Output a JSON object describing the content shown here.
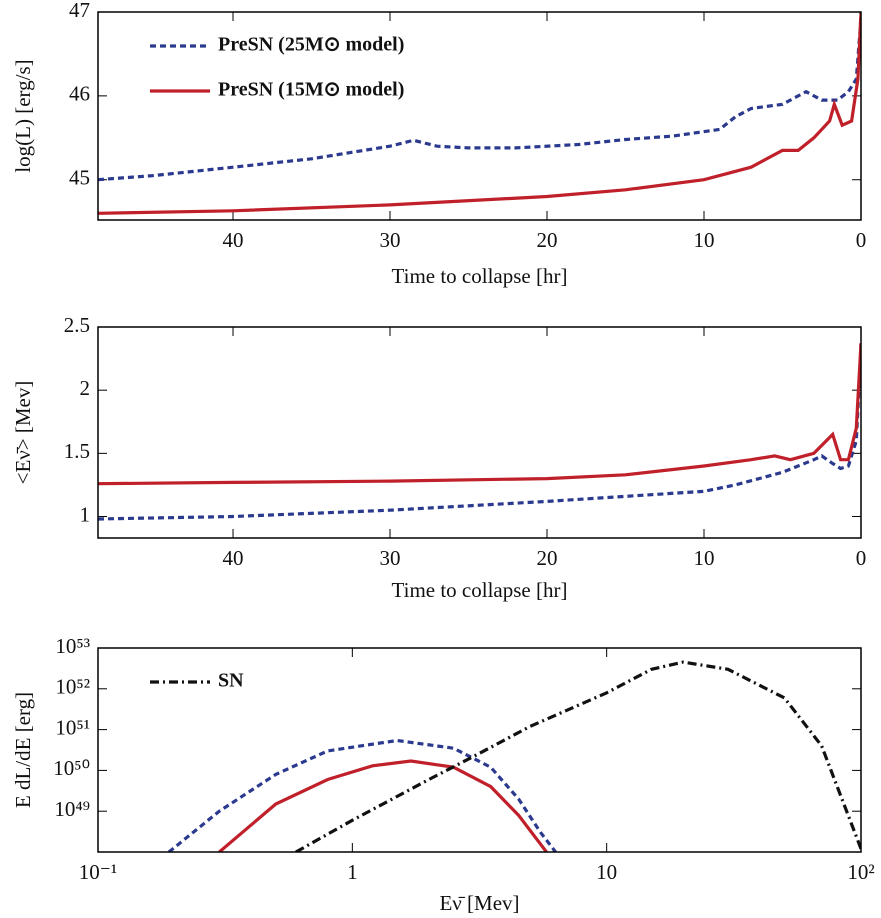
{
  "chart_data": [
    {
      "type": "line",
      "ylabel": "log(L) [erg/s]",
      "xlabel": "Time to collapse [hr]",
      "xlim": [
        48.6,
        0
      ],
      "xticks": [
        40,
        30,
        20,
        10,
        0
      ],
      "ylim": [
        44.52,
        47
      ],
      "yticks": [
        45,
        46,
        47
      ],
      "legend": "upper left",
      "series": [
        {
          "name": "PreSN (25M⊙ model)",
          "color": "#2b3a8f",
          "line_style": "dashed",
          "x": [
            48.6,
            45,
            40,
            35,
            30,
            28.5,
            27,
            25,
            22,
            18,
            15,
            12,
            9,
            8,
            7,
            5,
            3.5,
            2.5,
            1.5,
            0.8,
            0.3,
            0.05,
            0
          ],
          "values": [
            45.0,
            45.05,
            45.15,
            45.25,
            45.4,
            45.47,
            45.4,
            45.38,
            45.38,
            45.42,
            45.48,
            45.52,
            45.6,
            45.75,
            45.85,
            45.9,
            46.05,
            45.95,
            45.95,
            46.05,
            46.2,
            46.8,
            47
          ]
        },
        {
          "name": "PreSN (15M⊙ model)",
          "color": "#c0202a",
          "line_style": "solid",
          "x": [
            48.6,
            40,
            30,
            20,
            15,
            10,
            7,
            5,
            4,
            3,
            2,
            1.7,
            1.2,
            0.6,
            0.2,
            0
          ],
          "values": [
            44.6,
            44.63,
            44.7,
            44.8,
            44.88,
            45.0,
            45.15,
            45.35,
            45.35,
            45.5,
            45.7,
            45.9,
            45.65,
            45.7,
            46.2,
            47
          ]
        }
      ]
    },
    {
      "type": "line",
      "ylabel": "<Eν̄> [Mev]",
      "xlabel": "Time to collapse [hr]",
      "xlim": [
        48.6,
        0
      ],
      "xticks": [
        40,
        30,
        20,
        10,
        0
      ],
      "ylim": [
        0.83,
        2.5
      ],
      "yticks": [
        1,
        1.5,
        2,
        2.5
      ],
      "series": [
        {
          "color": "#2b3a8f",
          "line_style": "dashed",
          "x": [
            48.6,
            40,
            30,
            20,
            10,
            8,
            5,
            3,
            2.5,
            1.8,
            1.3,
            0.8,
            0.3,
            0.05,
            0
          ],
          "values": [
            0.98,
            1.0,
            1.05,
            1.12,
            1.2,
            1.25,
            1.35,
            1.45,
            1.48,
            1.42,
            1.38,
            1.4,
            1.6,
            2.2,
            2.37
          ]
        },
        {
          "color": "#c0202a",
          "line_style": "solid",
          "x": [
            48.6,
            40,
            30,
            20,
            15,
            10,
            7,
            5.5,
            4.5,
            3,
            1.8,
            1.3,
            0.8,
            0.3,
            0
          ],
          "values": [
            1.26,
            1.27,
            1.28,
            1.3,
            1.33,
            1.4,
            1.45,
            1.48,
            1.45,
            1.5,
            1.65,
            1.45,
            1.45,
            1.7,
            2.37
          ]
        }
      ]
    },
    {
      "type": "line",
      "ylabel": "E dL/dE [erg]",
      "xlabel": "Eν̄  [Mev]",
      "log_x": true,
      "log_y": true,
      "xlim": [
        0.1,
        100
      ],
      "xticks": [
        {
          "value": 0.1,
          "label": "10⁻¹"
        },
        1,
        10,
        {
          "value": 100,
          "label": "10²"
        }
      ],
      "ylim": [
        1e+48,
        1e+53
      ],
      "yticks": [
        {
          "value": 1e+49,
          "label": "10⁴⁹"
        },
        {
          "value": 1e+50,
          "label": "10⁵⁰"
        },
        {
          "value": 1e+51,
          "label": "10⁵¹"
        },
        {
          "value": 1e+52,
          "label": "10⁵²"
        },
        {
          "value": 1e+53,
          "label": "10⁵³"
        }
      ],
      "legend": "upper left",
      "series": [
        {
          "color": "#2b3a8f",
          "line_style": "dashed",
          "x": [
            0.19,
            0.3,
            0.5,
            0.8,
            1.5,
            2.5,
            3.5,
            4.5,
            5.5,
            6.3
          ],
          "values": [
            1e+48,
            1e+49,
            8e+49,
            3e+50,
            5.4e+50,
            3.5e+50,
            1.2e+50,
            2e+49,
            3e+48,
            1e+48
          ]
        },
        {
          "color": "#c0202a",
          "line_style": "solid",
          "x": [
            0.3,
            0.5,
            0.8,
            1.2,
            1.7,
            2.5,
            3.5,
            4.5,
            5.8
          ],
          "values": [
            1e+48,
            1.5e+49,
            6e+49,
            1.3e+50,
            1.7e+50,
            1.2e+50,
            4e+49,
            8e+48,
            1e+48
          ]
        },
        {
          "name": "SN",
          "color": "#111111",
          "line_style": "dashdot",
          "x": [
            0.6,
            1,
            2,
            3,
            5,
            10,
            15,
            20,
            30,
            50,
            70,
            100
          ],
          "values": [
            1e+48,
            6e+48,
            6e+49,
            2.2e+50,
            1.2e+51,
            8e+51,
            3e+52,
            4.5e+52,
            3e+52,
            6e+51,
            4e+50,
            1.2e+48
          ]
        }
      ]
    }
  ]
}
